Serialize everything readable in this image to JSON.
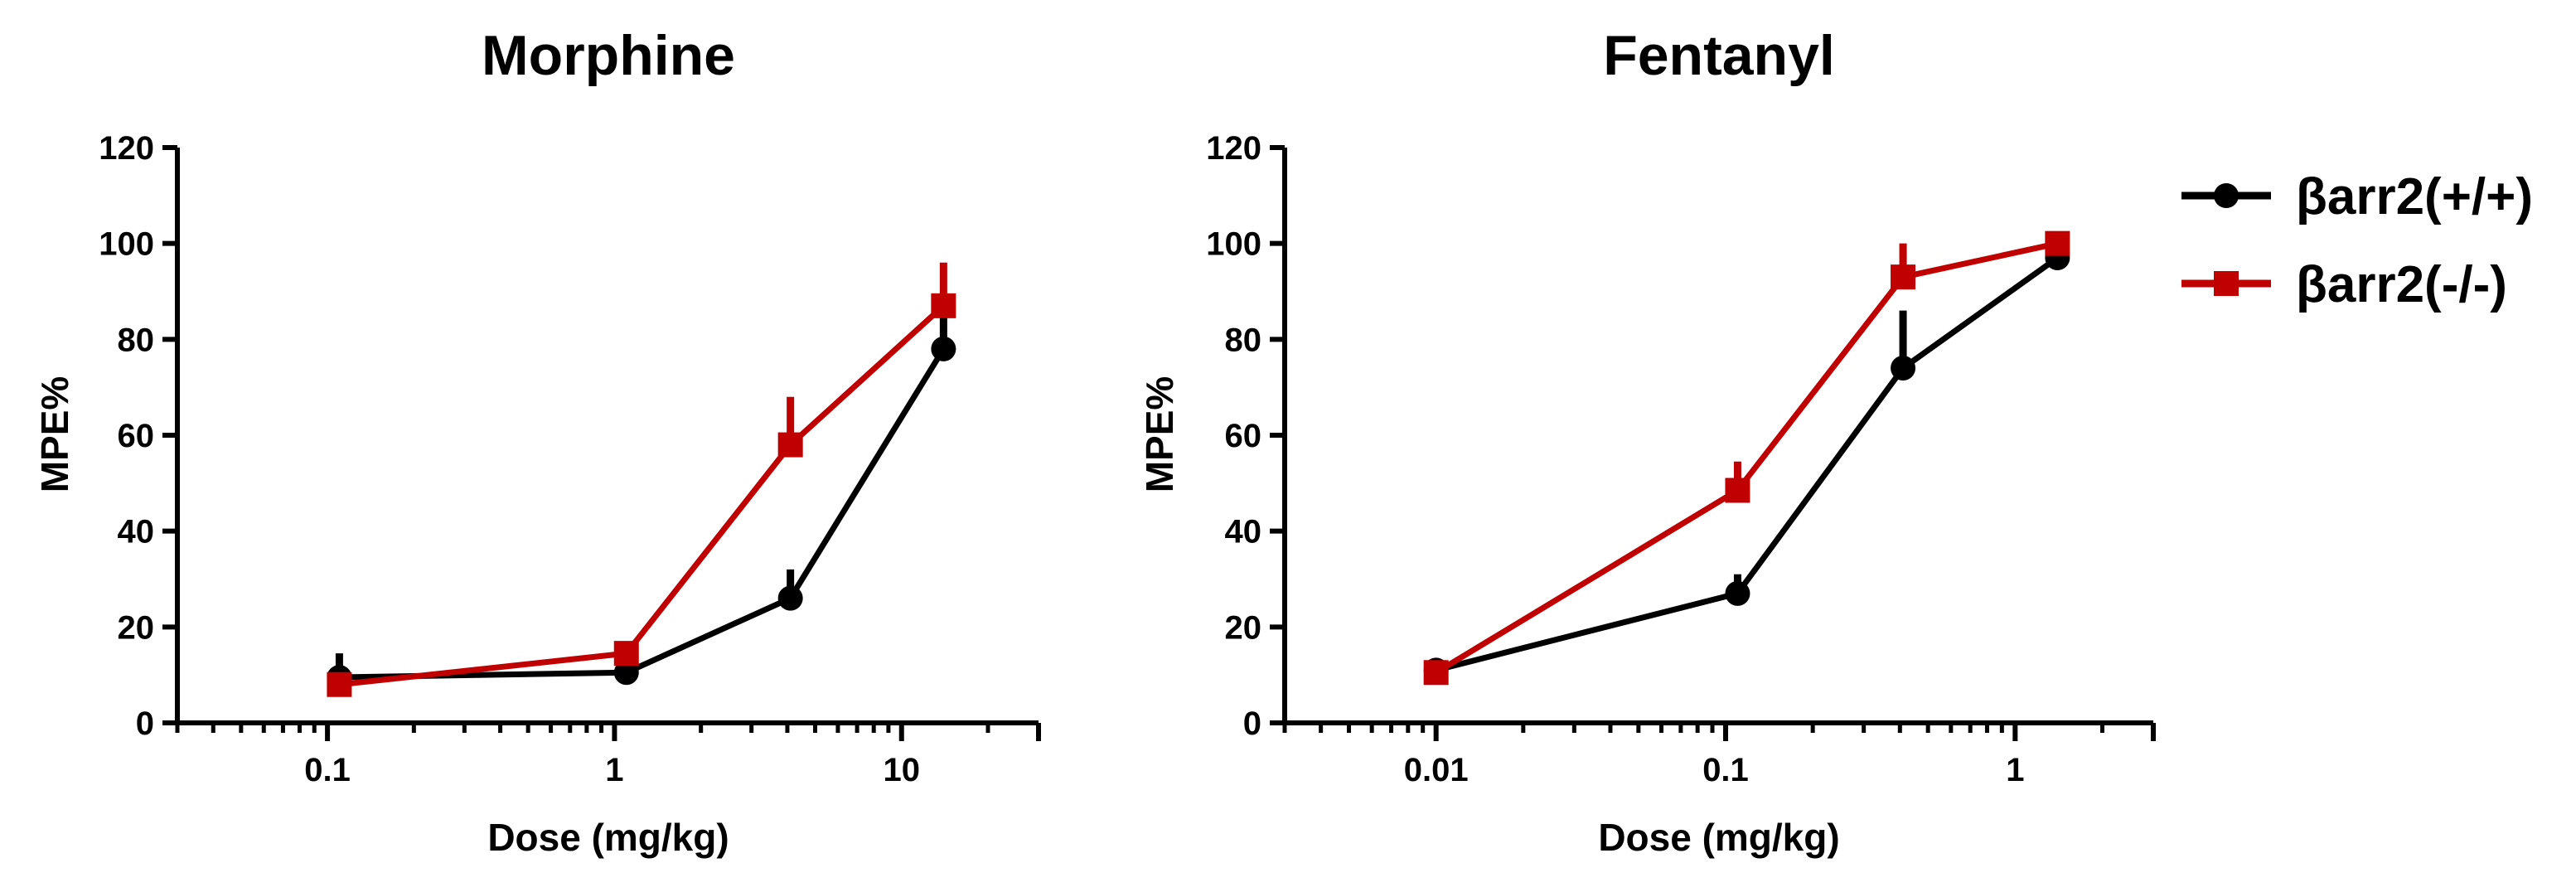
{
  "colors": {
    "series_wt": "#000000",
    "series_ko": "#c00000",
    "axis": "#000000"
  },
  "legend": {
    "items": [
      {
        "label": "βarr2(+/+)",
        "color": "#000000",
        "marker": "circle"
      },
      {
        "label": "βarr2(-/-)",
        "color": "#c00000",
        "marker": "square"
      }
    ]
  },
  "chart_data": [
    {
      "type": "line",
      "title": "Morphine",
      "xlabel": "Dose (mg/kg)",
      "ylabel": "MPE%",
      "xscale": "log",
      "xlim": [
        0.03,
        30
      ],
      "ylim": [
        0,
        120
      ],
      "xticks": [
        0.1,
        1,
        10
      ],
      "xtick_labels": [
        "0.1",
        "1",
        "10"
      ],
      "yticks": [
        0,
        20,
        40,
        60,
        80,
        100,
        120
      ],
      "ytick_labels": [
        "0",
        "20",
        "40",
        "60",
        "80",
        "100",
        "120"
      ],
      "series": [
        {
          "name": "βarr2(+/+)",
          "color": "#000000",
          "marker": "circle",
          "x": [
            0.11,
            1.1,
            4.1,
            14
          ],
          "y": [
            9.5,
            10.5,
            26,
            78
          ],
          "err": [
            5,
            0,
            6,
            8
          ]
        },
        {
          "name": "βarr2(-/-)",
          "color": "#c00000",
          "marker": "square",
          "x": [
            0.11,
            1.1,
            4.1,
            14
          ],
          "y": [
            8,
            14.5,
            58,
            87
          ],
          "err": [
            0,
            0,
            10,
            9
          ]
        }
      ]
    },
    {
      "type": "line",
      "title": "Fentanyl",
      "xlabel": "Dose (mg/kg)",
      "ylabel": "MPE%",
      "xscale": "log",
      "xlim": [
        0.003,
        3
      ],
      "ylim": [
        0,
        120
      ],
      "xticks": [
        0.01,
        0.1,
        1
      ],
      "xtick_labels": [
        "0.01",
        "0.1",
        "1"
      ],
      "yticks": [
        0,
        20,
        40,
        60,
        80,
        100,
        120
      ],
      "ytick_labels": [
        "0",
        "20",
        "40",
        "60",
        "80",
        "100",
        "120"
      ],
      "series": [
        {
          "name": "βarr2(+/+)",
          "color": "#000000",
          "marker": "circle",
          "x": [
            0.01,
            0.11,
            0.41,
            1.4
          ],
          "y": [
            11,
            27,
            74,
            97
          ],
          "err": [
            0,
            4,
            12,
            0
          ]
        },
        {
          "name": "βarr2(-/-)",
          "color": "#c00000",
          "marker": "square",
          "x": [
            0.01,
            0.11,
            0.41,
            1.4
          ],
          "y": [
            10.5,
            48.5,
            93,
            100
          ],
          "err": [
            0,
            6,
            7,
            0
          ]
        }
      ]
    }
  ]
}
